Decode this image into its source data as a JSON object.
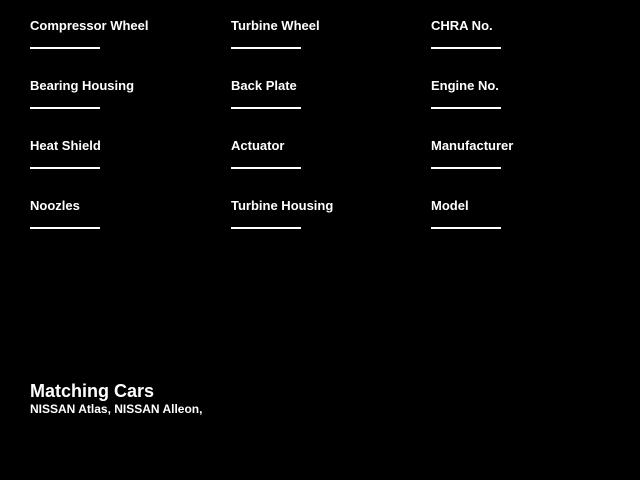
{
  "theme": {
    "background": "#000000",
    "text": "#ffffff",
    "line": "#ffffff"
  },
  "parts_form": {
    "columns": [
      {
        "fields": [
          {
            "label": "Compressor Wheel",
            "value": ""
          },
          {
            "label": "Bearing Housing",
            "value": ""
          },
          {
            "label": "Heat Shield",
            "value": ""
          },
          {
            "label": "Noozles",
            "value": ""
          }
        ]
      },
      {
        "fields": [
          {
            "label": "Turbine Wheel",
            "value": ""
          },
          {
            "label": "Back Plate",
            "value": ""
          },
          {
            "label": "Actuator",
            "value": ""
          },
          {
            "label": "Turbine Housing",
            "value": ""
          }
        ]
      },
      {
        "fields": [
          {
            "label": "CHRA No.",
            "value": ""
          },
          {
            "label": "Engine No.",
            "value": ""
          },
          {
            "label": "Manufacturer",
            "value": ""
          },
          {
            "label": "Model",
            "value": ""
          }
        ]
      }
    ]
  },
  "matching_cars": {
    "heading": "Matching Cars",
    "list": "NISSAN Atlas, NISSAN Alleon,"
  }
}
